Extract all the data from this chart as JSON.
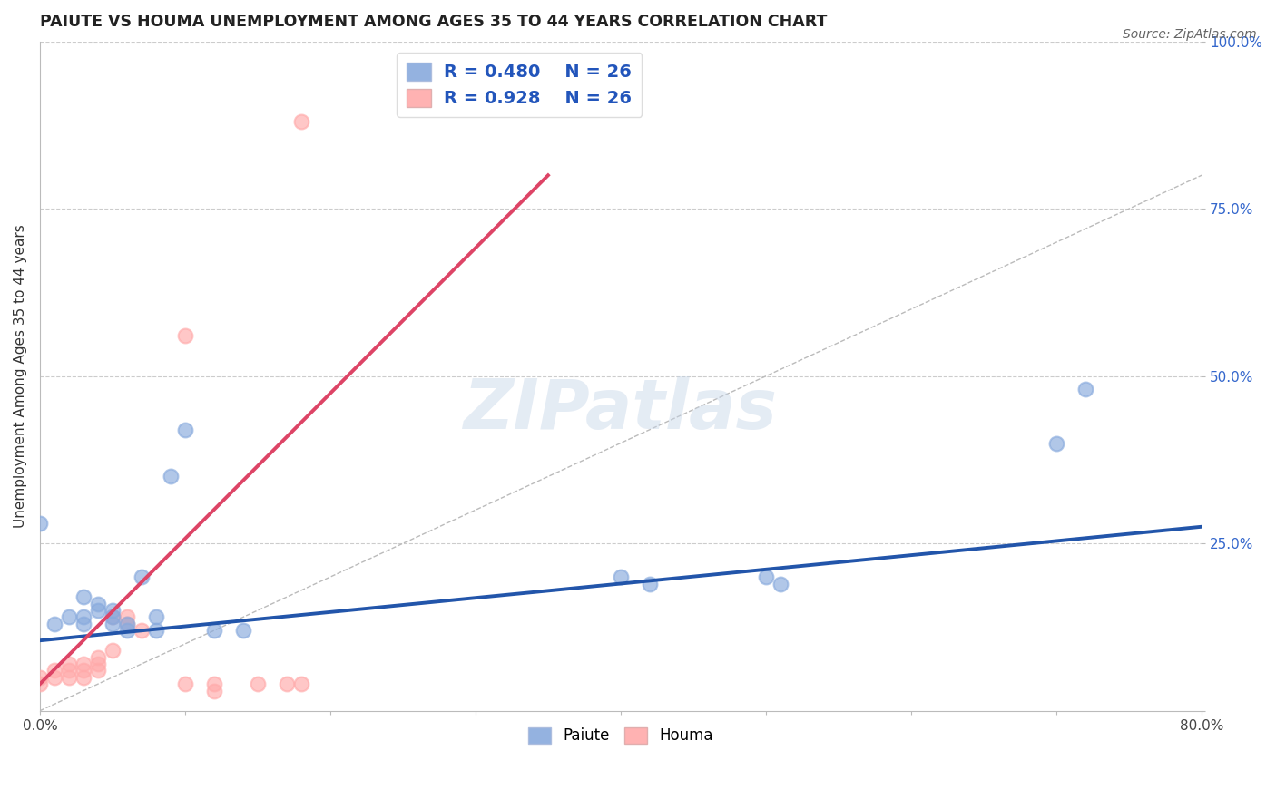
{
  "title": "PAIUTE VS HOUMA UNEMPLOYMENT AMONG AGES 35 TO 44 YEARS CORRELATION CHART",
  "source_text": "Source: ZipAtlas.com",
  "ylabel": "Unemployment Among Ages 35 to 44 years",
  "xlim": [
    0,
    0.8
  ],
  "ylim": [
    0,
    1.0
  ],
  "xticks": [
    0.0,
    0.1,
    0.2,
    0.3,
    0.4,
    0.5,
    0.6,
    0.7,
    0.8
  ],
  "xticklabels": [
    "0.0%",
    "",
    "",
    "",
    "",
    "",
    "",
    "",
    "80.0%"
  ],
  "yticks": [
    0.0,
    0.25,
    0.5,
    0.75,
    1.0
  ],
  "yticklabels": [
    "",
    "25.0%",
    "50.0%",
    "75.0%",
    "100.0%"
  ],
  "paiute_color": "#88aadd",
  "houma_color": "#ffaaaa",
  "paiute_line_color": "#2255aa",
  "houma_line_color": "#dd4466",
  "ref_line_color": "#bbbbbb",
  "background_color": "#ffffff",
  "grid_color": "#cccccc",
  "legend_R_paiute": "R = 0.480",
  "legend_N_paiute": "N = 26",
  "legend_R_houma": "R = 0.928",
  "legend_N_houma": "N = 26",
  "paiute_x": [
    0.0,
    0.01,
    0.02,
    0.03,
    0.03,
    0.04,
    0.04,
    0.05,
    0.05,
    0.06,
    0.07,
    0.08,
    0.09,
    0.1,
    0.12,
    0.14,
    0.4,
    0.42,
    0.5,
    0.51,
    0.7,
    0.72,
    0.03,
    0.05,
    0.06,
    0.08
  ],
  "paiute_y": [
    0.28,
    0.13,
    0.14,
    0.14,
    0.17,
    0.15,
    0.16,
    0.13,
    0.15,
    0.12,
    0.2,
    0.14,
    0.35,
    0.42,
    0.12,
    0.12,
    0.2,
    0.19,
    0.2,
    0.19,
    0.4,
    0.48,
    0.13,
    0.14,
    0.13,
    0.12
  ],
  "houma_x": [
    0.0,
    0.0,
    0.01,
    0.01,
    0.02,
    0.02,
    0.02,
    0.03,
    0.03,
    0.03,
    0.04,
    0.04,
    0.04,
    0.05,
    0.05,
    0.06,
    0.06,
    0.07,
    0.1,
    0.1,
    0.12,
    0.12,
    0.15,
    0.17,
    0.18,
    0.18
  ],
  "houma_y": [
    0.04,
    0.05,
    0.05,
    0.06,
    0.05,
    0.06,
    0.07,
    0.05,
    0.06,
    0.07,
    0.06,
    0.07,
    0.08,
    0.09,
    0.14,
    0.13,
    0.14,
    0.12,
    0.56,
    0.04,
    0.03,
    0.04,
    0.04,
    0.04,
    0.88,
    0.04
  ],
  "paiute_line_x": [
    0.0,
    0.8
  ],
  "paiute_line_y": [
    0.105,
    0.275
  ],
  "houma_line_x": [
    0.0,
    0.35
  ],
  "houma_line_y": [
    0.04,
    0.8
  ],
  "ref_line_x": [
    0.0,
    1.0
  ],
  "ref_line_y": [
    0.0,
    1.0
  ]
}
